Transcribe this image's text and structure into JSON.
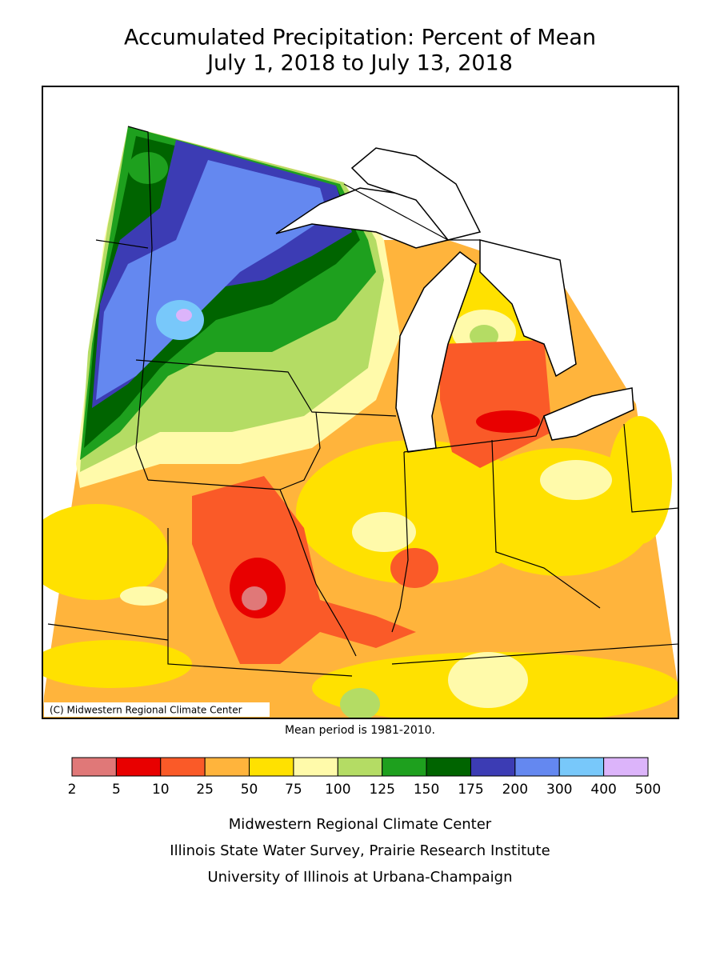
{
  "header": {
    "title_line1": "Accumulated Precipitation: Percent of Mean",
    "title_line2": "July 1, 2018 to July 13, 2018"
  },
  "map": {
    "copyright": "(C) Midwestern Regional Climate Center",
    "note": "Mean period is 1981-2010."
  },
  "legend": {
    "bins": [
      2,
      5,
      10,
      25,
      50,
      75,
      100,
      125,
      150,
      175,
      200,
      300,
      400,
      500
    ],
    "colors": [
      "#e07878",
      "#e80000",
      "#fa5a28",
      "#ffb43c",
      "#ffe100",
      "#fffaaa",
      "#b4dc64",
      "#1ea01e",
      "#006400",
      "#3c3cb4",
      "#6488f0",
      "#78c8fa",
      "#dcb4fa"
    ]
  },
  "footer": {
    "lines": [
      "Midwestern Regional Climate Center",
      "Illinois State Water Survey, Prairie Research Institute",
      "University of Illinois at Urbana-Champaign"
    ]
  }
}
